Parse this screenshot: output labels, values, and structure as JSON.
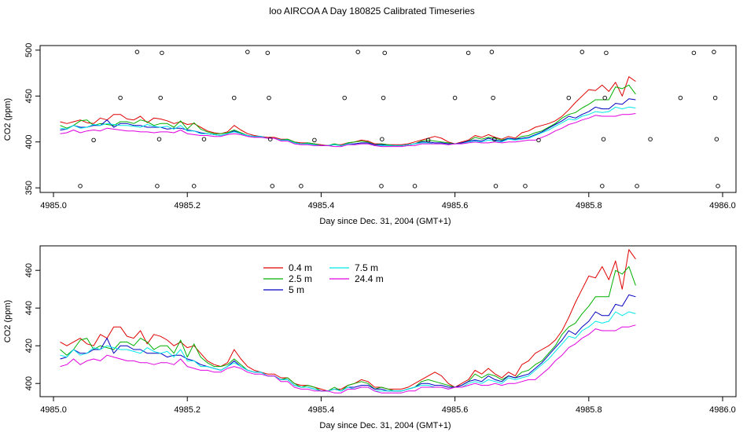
{
  "title": "loo AIRCOA A  Day 180825  Calibrated Timeseries",
  "colors": {
    "0.4 m": "#e00000",
    "2.5 m": "#00b000",
    "5 m": "#0000c0",
    "7.5 m": "#00e8e8",
    "24.4 m": "#e000e0",
    "points": "#000000",
    "frame": "#000000"
  },
  "chart_data": [
    {
      "type": "line",
      "panel": "top",
      "xlabel": "Day since Dec. 31, 2004 (GMT+1)",
      "ylabel": "CO2 (ppm)",
      "xlim": [
        4984.98,
        4986.02
      ],
      "ylim": [
        345,
        505
      ],
      "xticks": [
        4985.0,
        4985.2,
        4985.4,
        4985.6,
        4985.8,
        4986.0
      ],
      "xtick_labels": [
        "4985.0",
        "4985.2",
        "4985.4",
        "4985.6",
        "4985.8",
        "4986.0"
      ],
      "yticks": [
        350,
        400,
        450,
        500
      ],
      "ytick_labels": [
        "350",
        "400",
        "450",
        "500"
      ],
      "grid": false,
      "legend": "none",
      "points": [
        {
          "x": 4985.04,
          "y": 352
        },
        {
          "x": 4985.06,
          "y": 402
        },
        {
          "x": 4985.1,
          "y": 448
        },
        {
          "x": 4985.125,
          "y": 498
        },
        {
          "x": 4985.155,
          "y": 352
        },
        {
          "x": 4985.158,
          "y": 403
        },
        {
          "x": 4985.16,
          "y": 448
        },
        {
          "x": 4985.162,
          "y": 497
        },
        {
          "x": 4985.21,
          "y": 352
        },
        {
          "x": 4985.225,
          "y": 403
        },
        {
          "x": 4985.27,
          "y": 448
        },
        {
          "x": 4985.29,
          "y": 498
        },
        {
          "x": 4985.32,
          "y": 497
        },
        {
          "x": 4985.322,
          "y": 448
        },
        {
          "x": 4985.324,
          "y": 403
        },
        {
          "x": 4985.327,
          "y": 352
        },
        {
          "x": 4985.37,
          "y": 352
        },
        {
          "x": 4985.39,
          "y": 402
        },
        {
          "x": 4985.435,
          "y": 448
        },
        {
          "x": 4985.455,
          "y": 498
        },
        {
          "x": 4985.49,
          "y": 352
        },
        {
          "x": 4985.491,
          "y": 403
        },
        {
          "x": 4985.493,
          "y": 448
        },
        {
          "x": 4985.495,
          "y": 497
        },
        {
          "x": 4985.54,
          "y": 352
        },
        {
          "x": 4985.56,
          "y": 402
        },
        {
          "x": 4985.6,
          "y": 448
        },
        {
          "x": 4985.62,
          "y": 497
        },
        {
          "x": 4985.655,
          "y": 498
        },
        {
          "x": 4985.657,
          "y": 448
        },
        {
          "x": 4985.659,
          "y": 403
        },
        {
          "x": 4985.661,
          "y": 352
        },
        {
          "x": 4985.705,
          "y": 352
        },
        {
          "x": 4985.725,
          "y": 402
        },
        {
          "x": 4985.77,
          "y": 448
        },
        {
          "x": 4985.79,
          "y": 498
        },
        {
          "x": 4985.82,
          "y": 352
        },
        {
          "x": 4985.822,
          "y": 403
        },
        {
          "x": 4985.824,
          "y": 448
        },
        {
          "x": 4985.826,
          "y": 497
        },
        {
          "x": 4985.872,
          "y": 352
        },
        {
          "x": 4985.892,
          "y": 403
        },
        {
          "x": 4985.937,
          "y": 448
        },
        {
          "x": 4985.957,
          "y": 497
        },
        {
          "x": 4985.987,
          "y": 498
        },
        {
          "x": 4985.989,
          "y": 448
        },
        {
          "x": 4985.991,
          "y": 403
        },
        {
          "x": 4985.993,
          "y": 352
        }
      ]
    },
    {
      "type": "line",
      "panel": "bottom",
      "xlabel": "Day since Dec. 31, 2004 (GMT+1)",
      "ylabel": "CO2 (ppm)",
      "xlim": [
        4984.98,
        4986.02
      ],
      "ylim": [
        393,
        473
      ],
      "xticks": [
        4985.0,
        4985.2,
        4985.4,
        4985.6,
        4985.8,
        4986.0
      ],
      "xtick_labels": [
        "4985.0",
        "4985.2",
        "4985.4",
        "4985.6",
        "4985.8",
        "4986.0"
      ],
      "yticks": [
        400,
        420,
        440,
        460
      ],
      "ytick_labels": [
        "400",
        "420",
        "440",
        "460"
      ],
      "grid": false,
      "legend": "top-left, two columns",
      "legend_entries": [
        "0.4 m",
        "7.5 m",
        "2.5 m",
        "24.4 m",
        "5 m"
      ]
    }
  ],
  "shared_series": {
    "x_start": 4985.01,
    "x_step": 0.01,
    "series": [
      {
        "name": "0.4 m",
        "values": [
          422,
          420,
          422,
          424,
          421,
          420,
          426,
          424,
          430,
          430,
          425,
          424,
          428,
          421,
          426,
          425,
          423,
          420,
          422,
          419,
          420,
          416,
          412,
          410,
          409,
          411,
          418,
          413,
          409,
          407,
          406,
          405,
          405,
          403,
          403,
          400,
          399,
          399,
          398,
          397,
          396,
          397,
          397,
          399,
          400,
          402,
          401,
          398,
          398,
          397,
          397,
          397,
          398,
          400,
          402,
          404,
          406,
          404,
          400,
          398,
          400,
          402,
          407,
          405,
          408,
          405,
          403,
          406,
          404,
          410,
          412,
          416,
          418,
          420,
          423,
          428,
          435,
          443,
          450,
          457,
          456,
          462,
          455,
          465,
          450,
          471,
          466
        ]
      },
      {
        "name": "2.5 m",
        "values": [
          418,
          415,
          418,
          423,
          424,
          418,
          420,
          419,
          418,
          422,
          422,
          420,
          424,
          422,
          418,
          420,
          420,
          416,
          423,
          414,
          421,
          414,
          411,
          409,
          409,
          410,
          413,
          410,
          407,
          406,
          406,
          404,
          404,
          402,
          403,
          400,
          398,
          399,
          398,
          396,
          396,
          398,
          396,
          399,
          400,
          401,
          400,
          397,
          398,
          397,
          396,
          396,
          397,
          398,
          401,
          402,
          401,
          400,
          399,
          398,
          399,
          401,
          405,
          403,
          405,
          404,
          402,
          404,
          403,
          406,
          407,
          410,
          412,
          416,
          420,
          426,
          430,
          432,
          437,
          441,
          446,
          446,
          446,
          460,
          458,
          462,
          452
        ]
      },
      {
        "name": "5 m",
        "values": [
          413,
          414,
          418,
          416,
          416,
          418,
          418,
          424,
          416,
          420,
          420,
          418,
          418,
          416,
          416,
          416,
          414,
          415,
          415,
          413,
          412,
          410,
          409,
          408,
          407,
          409,
          412,
          409,
          407,
          406,
          406,
          404,
          404,
          402,
          402,
          399,
          398,
          398,
          397,
          396,
          396,
          397,
          396,
          398,
          398,
          399,
          399,
          397,
          397,
          396,
          396,
          396,
          397,
          398,
          400,
          400,
          399,
          399,
          398,
          398,
          399,
          401,
          402,
          401,
          404,
          402,
          401,
          404,
          403,
          404,
          405,
          408,
          411,
          415,
          419,
          423,
          428,
          426,
          430,
          433,
          438,
          436,
          436,
          442,
          441,
          447,
          446
        ]
      },
      {
        "name": "7.5 m",
        "values": [
          415,
          414,
          418,
          415,
          416,
          419,
          418,
          420,
          419,
          418,
          418,
          417,
          416,
          419,
          417,
          416,
          417,
          414,
          418,
          412,
          412,
          409,
          409,
          408,
          407,
          409,
          411,
          409,
          407,
          406,
          406,
          404,
          404,
          402,
          402,
          399,
          398,
          398,
          397,
          396,
          396,
          397,
          396,
          398,
          397,
          398,
          398,
          396,
          396,
          396,
          396,
          396,
          397,
          398,
          399,
          399,
          398,
          398,
          397,
          398,
          398,
          400,
          401,
          400,
          402,
          401,
          400,
          403,
          402,
          403,
          404,
          407,
          410,
          413,
          417,
          421,
          425,
          424,
          428,
          430,
          433,
          432,
          433,
          438,
          436,
          438,
          437
        ]
      },
      {
        "name": "24.4 m",
        "values": [
          409,
          410,
          413,
          410,
          412,
          413,
          412,
          415,
          414,
          413,
          412,
          412,
          411,
          411,
          410,
          411,
          411,
          410,
          413,
          409,
          408,
          407,
          407,
          406,
          406,
          408,
          409,
          408,
          406,
          405,
          405,
          404,
          404,
          401,
          401,
          398,
          397,
          397,
          396,
          396,
          396,
          395,
          395,
          397,
          397,
          398,
          398,
          396,
          395,
          395,
          395,
          395,
          396,
          396,
          398,
          398,
          398,
          398,
          397,
          398,
          398,
          399,
          400,
          399,
          399,
          400,
          399,
          400,
          400,
          401,
          402,
          402,
          405,
          408,
          412,
          415,
          419,
          421,
          424,
          426,
          429,
          428,
          428,
          428,
          430,
          430,
          431
        ]
      }
    ]
  },
  "legend": {
    "c1": [
      "0.4 m",
      "2.5 m",
      "5 m"
    ],
    "c2": [
      "7.5 m",
      "24.4 m"
    ]
  }
}
